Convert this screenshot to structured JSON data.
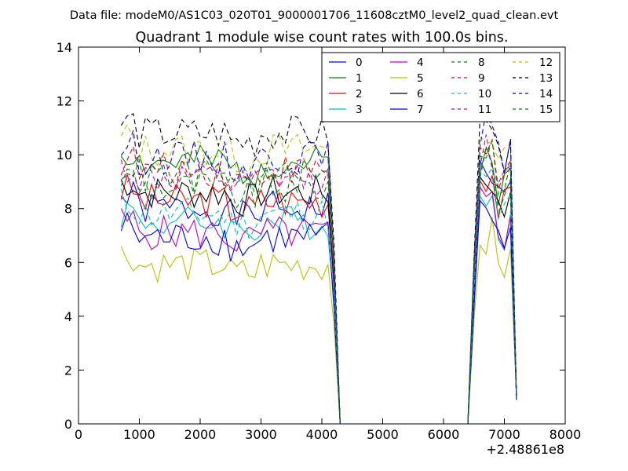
{
  "header": {
    "data_file": "Data file: modeM0/AS1C03_020T01_9000001706_11608cztM0_level2_quad_clean.evt"
  },
  "chart_data": {
    "type": "line",
    "title": "Quadrant 1 module wise count rates with 100.0s bins.",
    "xlabel": "",
    "ylabel": "",
    "x_offset_label": "+2.48861e8",
    "xlim": [
      0,
      8000
    ],
    "ylim": [
      0,
      14
    ],
    "xticks": [
      0,
      1000,
      2000,
      3000,
      4000,
      5000,
      6000,
      7000,
      8000
    ],
    "yticks": [
      0,
      2,
      4,
      6,
      8,
      10,
      12,
      14
    ],
    "grid": false,
    "legend": {
      "position": "top-right",
      "columns": 4
    },
    "segments": [
      {
        "x_start": 700,
        "x_step": 100,
        "count": 36
      },
      {
        "x_start": 4300,
        "x_step": 100,
        "count": 22
      },
      {
        "x_start": 6400,
        "x_step": 100,
        "count": 9
      }
    ],
    "series": [
      {
        "name": "0",
        "color": "#0000ff",
        "style": "solid",
        "base": 8.0,
        "late_base": 9.5,
        "seed": 1
      },
      {
        "name": "1",
        "color": "#008000",
        "style": "solid",
        "base": 9.7,
        "late_base": 10.0,
        "seed": 2
      },
      {
        "name": "2",
        "color": "#ff0000",
        "style": "solid",
        "base": 8.3,
        "late_base": 9.3,
        "seed": 3
      },
      {
        "name": "3",
        "color": "#00bfbf",
        "style": "solid",
        "base": 7.5,
        "late_base": 8.3,
        "seed": 4
      },
      {
        "name": "4",
        "color": "#bf00bf",
        "style": "solid",
        "base": 7.1,
        "late_base": 8.2,
        "seed": 5
      },
      {
        "name": "5",
        "color": "#bfbf00",
        "style": "solid",
        "base": 5.9,
        "late_base": 7.0,
        "seed": 6
      },
      {
        "name": "6",
        "color": "#000000",
        "style": "solid",
        "base": 8.6,
        "late_base": 9.1,
        "seed": 7
      },
      {
        "name": "7",
        "color": "#0000ff",
        "style": "solid",
        "base": 6.9,
        "late_base": 7.8,
        "seed": 8
      },
      {
        "name": "8",
        "color": "#008000",
        "style": "dashed",
        "base": 8.8,
        "late_base": 9.6,
        "seed": 9
      },
      {
        "name": "9",
        "color": "#ff0000",
        "style": "dashed",
        "base": 9.4,
        "late_base": 10.3,
        "seed": 10
      },
      {
        "name": "10",
        "color": "#00bfbf",
        "style": "dashed",
        "base": 7.8,
        "late_base": 9.0,
        "seed": 11
      },
      {
        "name": "11",
        "color": "#bf00bf",
        "style": "dashed",
        "base": 9.1,
        "late_base": 10.1,
        "seed": 12
      },
      {
        "name": "12",
        "color": "#bfbf00",
        "style": "dashed",
        "base": 10.2,
        "late_base": 10.8,
        "seed": 13
      },
      {
        "name": "13",
        "color": "#000000",
        "style": "dashed",
        "base": 10.8,
        "late_base": 11.1,
        "seed": 14
      },
      {
        "name": "14",
        "color": "#0000ff",
        "style": "dashed",
        "base": 9.9,
        "late_base": 11.0,
        "seed": 15
      },
      {
        "name": "15",
        "color": "#008000",
        "style": "dashed",
        "base": 9.2,
        "late_base": 10.2,
        "seed": 16
      }
    ]
  }
}
